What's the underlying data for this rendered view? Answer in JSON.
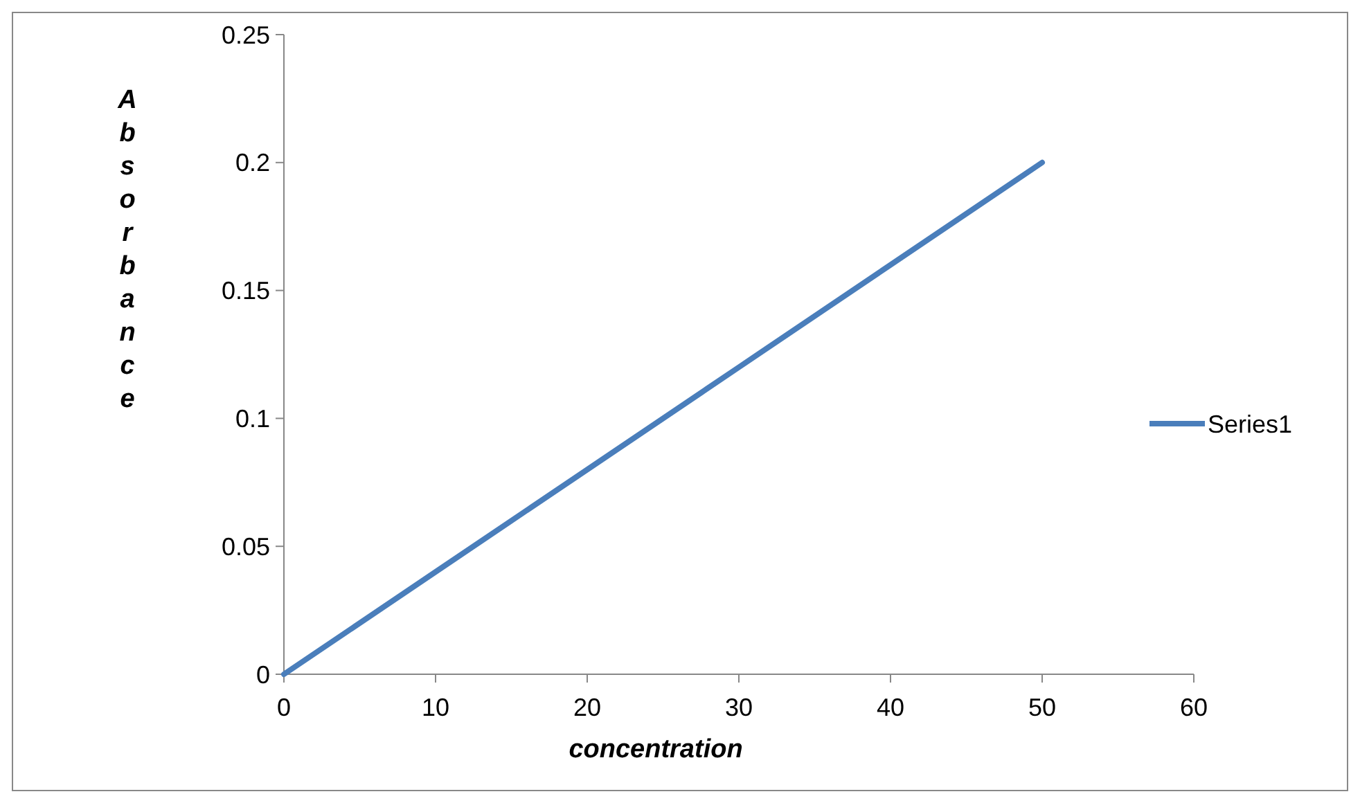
{
  "chart_data": {
    "type": "line",
    "xlabel": "concentration",
    "ylabel": "Absorbance",
    "x": [
      0,
      10,
      20,
      30,
      40,
      50
    ],
    "series": [
      {
        "name": "Series1",
        "color": "#4a7ebb",
        "values": [
          0,
          0.04,
          0.08,
          0.12,
          0.16,
          0.2
        ]
      }
    ],
    "xlim": [
      0,
      60
    ],
    "xticks": [
      0,
      10,
      20,
      30,
      40,
      50,
      60
    ],
    "ylim": [
      0,
      0.25
    ],
    "yticks": [
      0,
      0.05,
      0.1,
      0.15,
      0.2,
      0.25
    ],
    "grid": false,
    "legend": "right",
    "marker": "none",
    "line_style": "solid"
  }
}
